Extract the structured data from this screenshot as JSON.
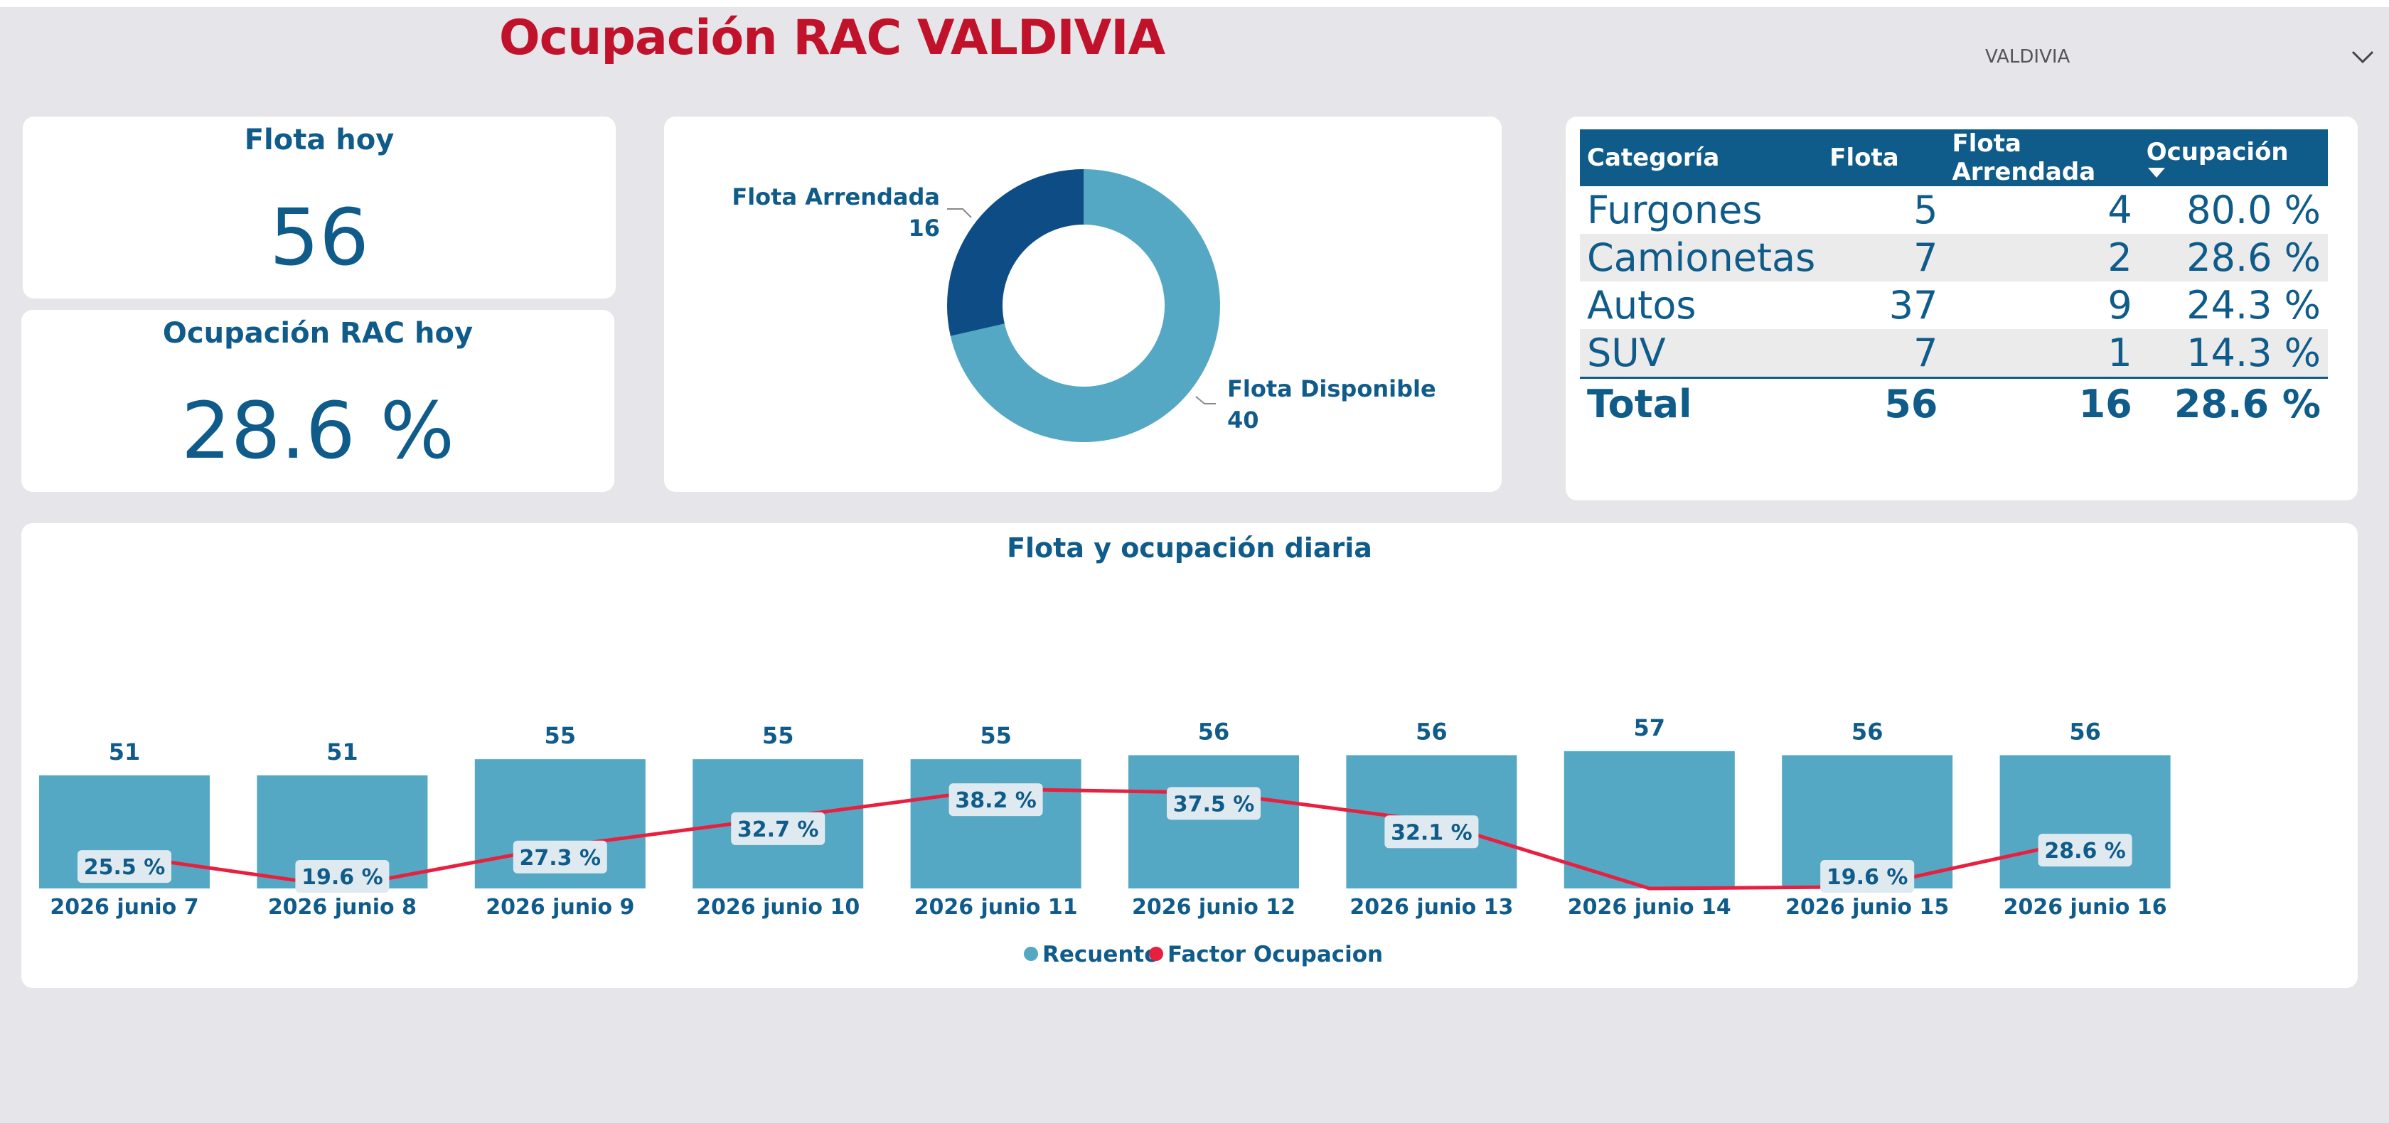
{
  "header": {
    "title": "Ocupación RAC VALDIVIA",
    "slicer_value": "VALDIVIA",
    "slicer_icon": "chevron-down-icon"
  },
  "kpi_fleet": {
    "label": "Flota hoy",
    "value": "56"
  },
  "kpi_occupancy": {
    "label": "Ocupación RAC hoy",
    "value": "28.6 %"
  },
  "donut": {
    "slices": [
      {
        "label": "Flota Arrendada",
        "value": 16,
        "display": "16",
        "color": "#0d4c85"
      },
      {
        "label": "Flota Disponible",
        "value": 40,
        "display": "40",
        "color": "#54a8c4"
      }
    ]
  },
  "table": {
    "columns": [
      "Categoría",
      "Flota",
      "Flota Arrendada",
      "Ocupación"
    ],
    "rows": [
      [
        "Furgones",
        "5",
        "4",
        "80.0 %"
      ],
      [
        "Camionetas",
        "7",
        "2",
        "28.6 %"
      ],
      [
        "Autos",
        "37",
        "9",
        "24.3 %"
      ],
      [
        "SUV",
        "7",
        "1",
        "14.3 %"
      ]
    ],
    "total": [
      "Total",
      "56",
      "16",
      "28.6 %"
    ]
  },
  "colors": {
    "accent": "#c0132b",
    "primary": "#0f5b8a",
    "bar": "#54a8c4",
    "line": "#e8203f",
    "dark_slice": "#0d4c85"
  },
  "chart_data": {
    "type": "bar",
    "title": "Flota y ocupación diaria",
    "categories": [
      "2026 junio 7",
      "2026 junio 8",
      "2026 junio 9",
      "2026 junio 10",
      "2026 junio 11",
      "2026 junio 12",
      "2026 junio 13",
      "2026 junio 14",
      "2026 junio 15",
      "2026 junio 16"
    ],
    "series": [
      {
        "name": "Recuento",
        "type": "bar",
        "color": "#54a8c4",
        "values": [
          51,
          51,
          55,
          55,
          55,
          56,
          56,
          57,
          56,
          56
        ]
      },
      {
        "name": "Factor Ocupacion",
        "type": "line",
        "color": "#e8203f",
        "values": [
          25.5,
          19.6,
          27.3,
          32.7,
          38.2,
          37.5,
          32.1,
          19.3,
          19.6,
          28.6
        ],
        "labels": [
          "25.5 %",
          "19.6 %",
          "27.3 %",
          "32.7 %",
          "38.2 %",
          "37.5 %",
          "32.1 %",
          "",
          "19.6 %",
          "28.6 %"
        ]
      }
    ],
    "legend": "bottom-center"
  }
}
